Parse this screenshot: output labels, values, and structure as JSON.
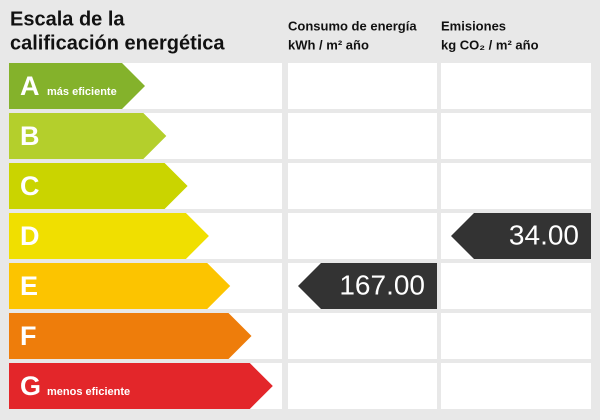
{
  "title": [
    "Escala de la",
    "calificación energética"
  ],
  "columns": [
    {
      "title": "Consumo de energía",
      "unit": "kWh / m² año",
      "rating": "E",
      "value": "167.00"
    },
    {
      "title": "Emisiones",
      "unit": "kg CO₂ / m² año",
      "rating": "D",
      "value": "34.00"
    }
  ],
  "ratings": [
    {
      "letter": "A",
      "note": "más eficiente",
      "color": "#84b22b"
    },
    {
      "letter": "B",
      "color": "#b4cf2c"
    },
    {
      "letter": "C",
      "color": "#cad400"
    },
    {
      "letter": "D",
      "color": "#f0df00"
    },
    {
      "letter": "E",
      "color": "#fcc400"
    },
    {
      "letter": "F",
      "color": "#ee7d0b"
    },
    {
      "letter": "G",
      "note": "menos eficiente",
      "color": "#e3262a"
    }
  ]
}
